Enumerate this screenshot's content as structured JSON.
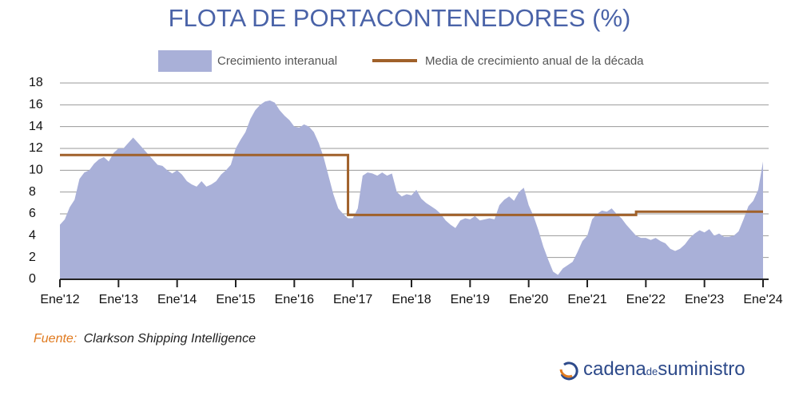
{
  "chart_data": {
    "type": "area",
    "title": "FLOTA DE PORTACONTENEDORES (%)",
    "categories": [
      "Ene'12",
      null,
      null,
      null,
      null,
      null,
      null,
      null,
      null,
      null,
      null,
      null,
      "Ene'13",
      null,
      null,
      null,
      null,
      null,
      null,
      null,
      null,
      null,
      null,
      null,
      "Ene'14",
      null,
      null,
      null,
      null,
      null,
      null,
      null,
      null,
      null,
      null,
      null,
      "Ene'15",
      null,
      null,
      null,
      null,
      null,
      null,
      null,
      null,
      null,
      null,
      null,
      "Ene'16",
      null,
      null,
      null,
      null,
      null,
      null,
      null,
      null,
      null,
      null,
      null,
      "Ene'17",
      null,
      null,
      null,
      null,
      null,
      null,
      null,
      null,
      null,
      null,
      null,
      "Ene'18",
      null,
      null,
      null,
      null,
      null,
      null,
      null,
      null,
      null,
      null,
      null,
      "Ene'19",
      null,
      null,
      null,
      null,
      null,
      null,
      null,
      null,
      null,
      null,
      null,
      "Ene'20",
      null,
      null,
      null,
      null,
      null,
      null,
      null,
      null,
      null,
      null,
      null,
      "Ene'21",
      null,
      null,
      null,
      null,
      null,
      null,
      null,
      null,
      null,
      null,
      null,
      "Ene'22",
      null,
      null,
      null,
      null,
      null,
      null,
      null,
      null,
      null,
      null,
      null,
      "Ene'23",
      null,
      null,
      null,
      null,
      null,
      null,
      null,
      null,
      null,
      null,
      null,
      "Ene'24"
    ],
    "series": [
      {
        "name": "Crecimiento interanual",
        "color": "#a9b0d8",
        "style": "area",
        "values": [
          5.0,
          5.5,
          6.6,
          7.3,
          9.2,
          9.8,
          10.0,
          10.6,
          11.0,
          11.2,
          10.8,
          11.6,
          12.0,
          12.0,
          12.5,
          13.0,
          12.5,
          12.0,
          11.5,
          11.0,
          10.5,
          10.4,
          10.0,
          9.7,
          10.0,
          9.6,
          9.0,
          8.7,
          8.5,
          9.0,
          8.5,
          8.7,
          9.0,
          9.6,
          10.0,
          10.5,
          12.0,
          12.8,
          13.5,
          14.7,
          15.5,
          16.0,
          16.3,
          16.4,
          16.2,
          15.5,
          15.0,
          14.6,
          14.0,
          13.9,
          14.2,
          14.0,
          13.5,
          12.5,
          11.2,
          9.5,
          7.8,
          6.5,
          6.0,
          5.6,
          5.6,
          6.5,
          9.5,
          9.8,
          9.7,
          9.5,
          9.8,
          9.5,
          9.7,
          8.0,
          7.6,
          7.8,
          7.7,
          8.2,
          7.4,
          7.0,
          6.7,
          6.4,
          6.0,
          5.4,
          5.0,
          4.7,
          5.4,
          5.6,
          5.5,
          5.8,
          5.4,
          5.5,
          5.6,
          5.5,
          6.8,
          7.3,
          7.6,
          7.2,
          8.0,
          8.4,
          6.8,
          5.8,
          4.5,
          3.0,
          1.8,
          0.7,
          0.4,
          1.0,
          1.3,
          1.6,
          2.5,
          3.5,
          4.0,
          5.5,
          6.0,
          6.3,
          6.2,
          6.5,
          6.0,
          5.6,
          5.0,
          4.5,
          4.0,
          3.8,
          3.8,
          3.6,
          3.8,
          3.5,
          3.3,
          2.8,
          2.6,
          2.8,
          3.2,
          3.8,
          4.2,
          4.5,
          4.3,
          4.6,
          4.0,
          4.2,
          3.9,
          3.9,
          4.0,
          4.4,
          5.5,
          6.7,
          7.2,
          8.2,
          10.8
        ]
      },
      {
        "name": "Media de crecimiento anual de la década",
        "color": "#a0612a",
        "style": "step",
        "values": [
          11.4,
          11.4,
          11.4,
          11.4,
          11.4,
          11.4,
          11.4,
          11.4,
          11.4,
          11.4,
          11.4,
          11.4,
          11.4,
          11.4,
          11.4,
          11.4,
          11.4,
          11.4,
          11.4,
          11.4,
          11.4,
          11.4,
          11.4,
          11.4,
          11.4,
          11.4,
          11.4,
          11.4,
          11.4,
          11.4,
          11.4,
          11.4,
          11.4,
          11.4,
          11.4,
          11.4,
          11.4,
          11.4,
          11.4,
          11.4,
          11.4,
          11.4,
          11.4,
          11.4,
          11.4,
          11.4,
          11.4,
          11.4,
          11.4,
          11.4,
          11.4,
          11.4,
          11.4,
          11.4,
          11.4,
          11.4,
          11.4,
          11.4,
          11.4,
          5.9,
          5.9,
          5.9,
          5.9,
          5.9,
          5.9,
          5.9,
          5.9,
          5.9,
          5.9,
          5.9,
          5.9,
          5.9,
          5.9,
          5.9,
          5.9,
          5.9,
          5.9,
          5.9,
          5.9,
          5.9,
          5.9,
          5.9,
          5.9,
          5.9,
          5.9,
          5.9,
          5.9,
          5.9,
          5.9,
          5.9,
          5.9,
          5.9,
          5.9,
          5.9,
          5.9,
          5.9,
          5.9,
          5.9,
          5.9,
          5.9,
          5.9,
          5.9,
          5.9,
          5.9,
          5.9,
          5.9,
          5.9,
          5.9,
          5.9,
          5.9,
          5.9,
          5.9,
          5.9,
          5.9,
          5.9,
          5.9,
          5.9,
          5.9,
          6.2,
          6.2,
          6.2,
          6.2,
          6.2,
          6.2,
          6.2,
          6.2,
          6.2,
          6.2,
          6.2,
          6.2,
          6.2,
          6.2,
          6.2,
          6.2,
          6.2,
          6.2,
          6.2,
          6.2,
          6.2,
          6.2,
          6.2,
          6.2,
          6.2,
          6.2,
          6.2
        ]
      }
    ],
    "ylim": [
      0,
      18
    ],
    "yticks": [
      0,
      2,
      4,
      6,
      8,
      10,
      12,
      14,
      16,
      18
    ],
    "grid": true,
    "legend": "top",
    "source_label": "Fuente:",
    "source": "Clarkson Shipping Intelligence",
    "logo_main": "cadena",
    "logo_small": "de",
    "logo_end": "suministro"
  }
}
